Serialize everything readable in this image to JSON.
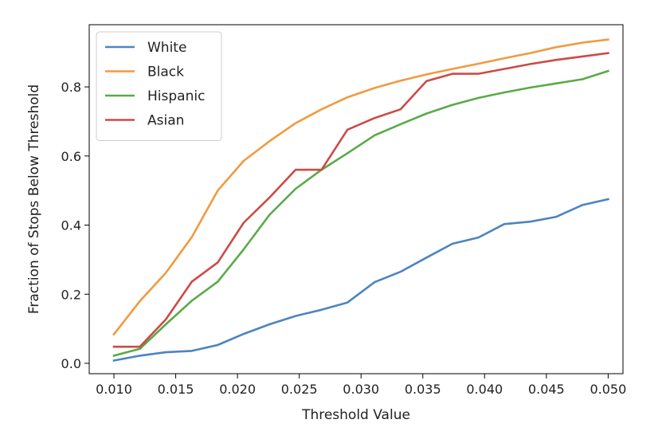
{
  "chart_data": {
    "type": "line",
    "title": "",
    "xlabel": "Threshold Value",
    "ylabel": "Fraction of Stops Below Threshold",
    "xlim": [
      0.008,
      0.0512
    ],
    "ylim": [
      -0.03,
      0.98
    ],
    "xticks": [
      0.01,
      0.015,
      0.02,
      0.025,
      0.03,
      0.035,
      0.04,
      0.045,
      0.05
    ],
    "xtick_labels": [
      "0.010",
      "0.015",
      "0.020",
      "0.025",
      "0.030",
      "0.035",
      "0.040",
      "0.045",
      "0.050"
    ],
    "yticks": [
      0.0,
      0.2,
      0.4,
      0.6,
      0.8
    ],
    "ytick_labels": [
      "0.0",
      "0.2",
      "0.4",
      "0.6",
      "0.8"
    ],
    "grid": false,
    "legend_position": "top-left",
    "x": [
      0.01,
      0.0121,
      0.0142,
      0.0163,
      0.0184,
      0.0205,
      0.0226,
      0.0247,
      0.0268,
      0.0289,
      0.0311,
      0.0332,
      0.0353,
      0.0374,
      0.0395,
      0.0416,
      0.0437,
      0.0458,
      0.0479,
      0.05
    ],
    "series": [
      {
        "name": "White",
        "color": "#4d84c0",
        "values": [
          0.008,
          0.022,
          0.032,
          0.036,
          0.053,
          0.085,
          0.113,
          0.137,
          0.155,
          0.176,
          0.235,
          0.265,
          0.306,
          0.346,
          0.364,
          0.403,
          0.41,
          0.424,
          0.458,
          0.475
        ]
      },
      {
        "name": "Black",
        "color": "#f19a40",
        "values": [
          0.084,
          0.18,
          0.262,
          0.365,
          0.5,
          0.586,
          0.643,
          0.695,
          0.735,
          0.77,
          0.797,
          0.818,
          0.836,
          0.852,
          0.867,
          0.883,
          0.898,
          0.915,
          0.928,
          0.937
        ]
      },
      {
        "name": "Hispanic",
        "color": "#5aaa48",
        "values": [
          0.022,
          0.042,
          0.113,
          0.181,
          0.236,
          0.33,
          0.43,
          0.505,
          0.56,
          0.608,
          0.66,
          0.692,
          0.723,
          0.748,
          0.768,
          0.784,
          0.798,
          0.81,
          0.822,
          0.846
        ]
      },
      {
        "name": "Asian",
        "color": "#cc4b46",
        "values": [
          0.048,
          0.048,
          0.127,
          0.236,
          0.292,
          0.407,
          0.48,
          0.56,
          0.56,
          0.676,
          0.71,
          0.735,
          0.817,
          0.838,
          0.838,
          0.852,
          0.866,
          0.878,
          0.888,
          0.898
        ]
      }
    ]
  }
}
